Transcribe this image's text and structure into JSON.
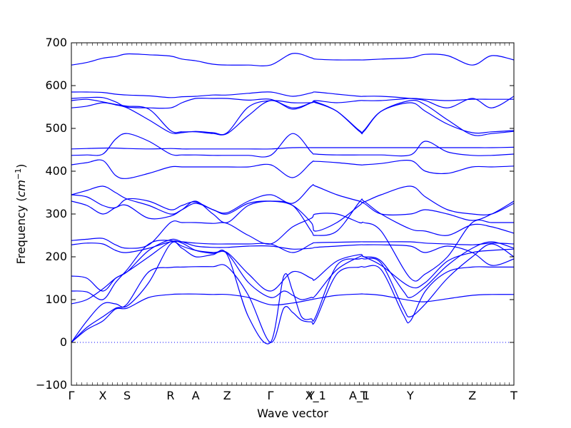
{
  "chart_data": {
    "type": "line",
    "xlabel": "Wave vector",
    "ylabel_text": "Frequency (",
    "ylabel_unit": "cm",
    "ylabel_unit_exp": "−1",
    "ylabel_close": ")",
    "ylim": [
      -100,
      700
    ],
    "yticks": [
      -100,
      0,
      100,
      200,
      300,
      400,
      500,
      600,
      700
    ],
    "xlim": [
      0,
      1
    ],
    "high_symmetry_points": [
      {
        "label": "Γ",
        "x": 0.0
      },
      {
        "label": "X",
        "x": 0.071
      },
      {
        "label": "S",
        "x": 0.126
      },
      {
        "label": "R",
        "x": 0.224
      },
      {
        "label": "A",
        "x": 0.281
      },
      {
        "label": "Z",
        "x": 0.352
      },
      {
        "label": "Γ",
        "x": 0.45
      },
      {
        "label": "Y",
        "x": 0.542
      },
      {
        "label": "X_1",
        "x": 0.552
      },
      {
        "label": "A_1",
        "x": 0.651
      },
      {
        "label": "T",
        "x": 0.661
      },
      {
        "label": "Y",
        "x": 0.766
      },
      {
        "label": "Z",
        "x": 0.906
      },
      {
        "label": "T",
        "x": 1.0
      }
    ],
    "line_color": "#0000ff",
    "zero_line": {
      "y": 0,
      "style": "dotted",
      "color": "#0000ff"
    },
    "grid": false,
    "series": [
      {
        "x": [
          0,
          0.035,
          0.071,
          0.1,
          0.126,
          0.175,
          0.224,
          0.25,
          0.281,
          0.32,
          0.352,
          0.4,
          0.45,
          0.5,
          0.542,
          0.552,
          0.6,
          0.651,
          0.661,
          0.7,
          0.766,
          0.8,
          0.85,
          0.906,
          0.95,
          1.0
        ],
        "y": [
          0,
          30,
          50,
          78,
          80,
          105,
          112,
          113,
          113,
          112,
          112,
          105,
          88,
          92,
          100,
          102,
          110,
          113,
          113,
          110,
          98,
          95,
          102,
          110,
          112,
          112
        ]
      },
      {
        "x": [
          0,
          0.035,
          0.071,
          0.1,
          0.126,
          0.175,
          0.224,
          0.25,
          0.281,
          0.32,
          0.352,
          0.4,
          0.45,
          0.48,
          0.5,
          0.52,
          0.542,
          0.552,
          0.6,
          0.651,
          0.661,
          0.7,
          0.75,
          0.766,
          0.8,
          0.85,
          0.906,
          0.95,
          1.0
        ],
        "y": [
          0,
          35,
          60,
          80,
          90,
          165,
          175,
          176,
          177,
          177,
          177,
          110,
          0,
          80,
          70,
          52,
          48,
          52,
          160,
          176,
          176,
          170,
          65,
          50,
          120,
          165,
          176,
          176,
          176
        ]
      },
      {
        "x": [
          0,
          0.035,
          0.071,
          0.1,
          0.126,
          0.175,
          0.224,
          0.25,
          0.281,
          0.32,
          0.352,
          0.4,
          0.45,
          0.48,
          0.5,
          0.52,
          0.542,
          0.552,
          0.6,
          0.651,
          0.661,
          0.7,
          0.75,
          0.766,
          0.8,
          0.85,
          0.906,
          0.95,
          1.0
        ],
        "y": [
          0,
          50,
          90,
          90,
          85,
          140,
          230,
          220,
          200,
          205,
          205,
          60,
          0,
          155,
          120,
          60,
          55,
          60,
          180,
          195,
          195,
          185,
          80,
          60,
          90,
          150,
          200,
          230,
          200
        ]
      },
      {
        "x": [
          0,
          0.035,
          0.071,
          0.1,
          0.126,
          0.175,
          0.224,
          0.25,
          0.281,
          0.32,
          0.352,
          0.4,
          0.45,
          0.48,
          0.5,
          0.52,
          0.542,
          0.552,
          0.6,
          0.651,
          0.661,
          0.7,
          0.75,
          0.766,
          0.8,
          0.85,
          0.906,
          0.95,
          1.0
        ],
        "y": [
          90,
          100,
          125,
          150,
          165,
          200,
          235,
          232,
          215,
          208,
          208,
          140,
          105,
          120,
          110,
          100,
          105,
          110,
          170,
          200,
          200,
          190,
          120,
          105,
          130,
          180,
          220,
          235,
          220
        ]
      },
      {
        "x": [
          0,
          0.035,
          0.071,
          0.1,
          0.126,
          0.175,
          0.224,
          0.25,
          0.281,
          0.32,
          0.352,
          0.4,
          0.45,
          0.5,
          0.542,
          0.552,
          0.6,
          0.651,
          0.661,
          0.7,
          0.766,
          0.8,
          0.85,
          0.906,
          0.95,
          1.0
        ],
        "y": [
          120,
          118,
          100,
          140,
          170,
          230,
          238,
          225,
          215,
          210,
          210,
          160,
          120,
          165,
          150,
          148,
          190,
          205,
          200,
          180,
          130,
          140,
          190,
          210,
          215,
          218
        ]
      },
      {
        "x": [
          0,
          0.035,
          0.071,
          0.1,
          0.126,
          0.175,
          0.224,
          0.25,
          0.281,
          0.32,
          0.352,
          0.4,
          0.45,
          0.5,
          0.542,
          0.552,
          0.6,
          0.651,
          0.661,
          0.7,
          0.766,
          0.8,
          0.85,
          0.906,
          0.95,
          1.0
        ],
        "y": [
          155,
          150,
          120,
          150,
          165,
          215,
          240,
          235,
          225,
          222,
          222,
          225,
          225,
          218,
          220,
          222,
          225,
          228,
          228,
          228,
          225,
          210,
          225,
          210,
          180,
          195
        ]
      },
      {
        "x": [
          0,
          0.035,
          0.071,
          0.1,
          0.126,
          0.175,
          0.224,
          0.25,
          0.281,
          0.32,
          0.352,
          0.4,
          0.45,
          0.5,
          0.542,
          0.552,
          0.6,
          0.651,
          0.661,
          0.7,
          0.766,
          0.8,
          0.85,
          0.906,
          0.95,
          1.0
        ],
        "y": [
          228,
          232,
          230,
          215,
          210,
          220,
          235,
          235,
          232,
          230,
          230,
          230,
          230,
          210,
          230,
          233,
          234,
          235,
          235,
          235,
          235,
          232,
          230,
          228,
          232,
          230
        ]
      },
      {
        "x": [
          0,
          0.035,
          0.071,
          0.1,
          0.126,
          0.175,
          0.224,
          0.25,
          0.281,
          0.32,
          0.352,
          0.4,
          0.45,
          0.5,
          0.542,
          0.552,
          0.6,
          0.651,
          0.661,
          0.7,
          0.766,
          0.8,
          0.85,
          0.906,
          0.95,
          1.0
        ],
        "y": [
          238,
          241,
          243,
          228,
          220,
          228,
          280,
          280,
          280,
          278,
          278,
          250,
          230,
          270,
          290,
          300,
          300,
          280,
          280,
          260,
          150,
          160,
          200,
          280,
          280,
          280
        ]
      },
      {
        "x": [
          0,
          0.035,
          0.071,
          0.1,
          0.126,
          0.175,
          0.224,
          0.25,
          0.281,
          0.32,
          0.352,
          0.4,
          0.45,
          0.5,
          0.542,
          0.552,
          0.6,
          0.651,
          0.661,
          0.7,
          0.766,
          0.8,
          0.85,
          0.906,
          0.95,
          1.0
        ],
        "y": [
          330,
          320,
          300,
          315,
          320,
          290,
          295,
          310,
          330,
          300,
          280,
          320,
          330,
          320,
          260,
          250,
          260,
          328,
          330,
          300,
          265,
          260,
          250,
          275,
          270,
          255
        ]
      },
      {
        "x": [
          0,
          0.035,
          0.071,
          0.1,
          0.126,
          0.175,
          0.224,
          0.25,
          0.281,
          0.32,
          0.352,
          0.4,
          0.45,
          0.5,
          0.542,
          0.552,
          0.6,
          0.651,
          0.661,
          0.7,
          0.766,
          0.8,
          0.85,
          0.906,
          0.95,
          1.0
        ],
        "y": [
          345,
          355,
          365,
          350,
          335,
          320,
          300,
          310,
          325,
          310,
          300,
          325,
          330,
          320,
          280,
          260,
          280,
          320,
          325,
          300,
          300,
          310,
          300,
          285,
          300,
          330
        ]
      },
      {
        "x": [
          0,
          0.035,
          0.071,
          0.1,
          0.126,
          0.175,
          0.224,
          0.25,
          0.281,
          0.32,
          0.352,
          0.4,
          0.45,
          0.5,
          0.542,
          0.552,
          0.6,
          0.651,
          0.661,
          0.7,
          0.766,
          0.8,
          0.85,
          0.906,
          0.95,
          1.0
        ],
        "y": [
          345,
          340,
          320,
          315,
          335,
          330,
          310,
          320,
          328,
          310,
          303,
          330,
          345,
          325,
          365,
          365,
          345,
          330,
          328,
          345,
          365,
          340,
          310,
          300,
          300,
          325
        ]
      },
      {
        "x": [
          0,
          0.035,
          0.071,
          0.1,
          0.126,
          0.175,
          0.224,
          0.25,
          0.281,
          0.32,
          0.352,
          0.4,
          0.45,
          0.5,
          0.542,
          0.552,
          0.6,
          0.651,
          0.661,
          0.7,
          0.766,
          0.8,
          0.85,
          0.906,
          0.95,
          1.0
        ],
        "y": [
          415,
          420,
          425,
          390,
          383,
          395,
          410,
          410,
          410,
          410,
          410,
          410,
          415,
          385,
          420,
          423,
          420,
          415,
          415,
          418,
          425,
          400,
          395,
          410,
          410,
          412
        ]
      },
      {
        "x": [
          0,
          0.035,
          0.071,
          0.1,
          0.126,
          0.175,
          0.224,
          0.25,
          0.281,
          0.32,
          0.352,
          0.4,
          0.45,
          0.5,
          0.542,
          0.552,
          0.6,
          0.651,
          0.661,
          0.7,
          0.766,
          0.8,
          0.85,
          0.906,
          0.95,
          1.0
        ],
        "y": [
          437,
          438,
          440,
          475,
          488,
          470,
          440,
          438,
          438,
          437,
          437,
          437,
          437,
          488,
          445,
          440,
          438,
          438,
          438,
          438,
          438,
          470,
          445,
          437,
          437,
          440
        ]
      },
      {
        "x": [
          0,
          0.035,
          0.071,
          0.1,
          0.126,
          0.175,
          0.224,
          0.25,
          0.281,
          0.32,
          0.352,
          0.4,
          0.45,
          0.5,
          0.542,
          0.552,
          0.6,
          0.651,
          0.661,
          0.7,
          0.766,
          0.8,
          0.85,
          0.906,
          0.95,
          1.0
        ],
        "y": [
          452,
          453,
          454,
          454,
          453,
          452,
          453,
          452,
          452,
          452,
          452,
          452,
          452,
          455,
          455,
          455,
          455,
          455,
          455,
          455,
          455,
          455,
          455,
          455,
          455,
          456
        ]
      },
      {
        "x": [
          0,
          0.035,
          0.071,
          0.1,
          0.126,
          0.175,
          0.224,
          0.25,
          0.281,
          0.32,
          0.352,
          0.4,
          0.45,
          0.5,
          0.542,
          0.552,
          0.6,
          0.651,
          0.661,
          0.7,
          0.766,
          0.8,
          0.85,
          0.906,
          0.95,
          1.0
        ],
        "y": [
          548,
          552,
          560,
          555,
          548,
          520,
          490,
          490,
          493,
          490,
          490,
          550,
          565,
          560,
          560,
          560,
          540,
          495,
          495,
          540,
          560,
          540,
          510,
          490,
          492,
          495
        ]
      },
      {
        "x": [
          0,
          0.035,
          0.071,
          0.1,
          0.126,
          0.175,
          0.224,
          0.25,
          0.281,
          0.32,
          0.352,
          0.4,
          0.45,
          0.5,
          0.542,
          0.552,
          0.6,
          0.651,
          0.661,
          0.7,
          0.766,
          0.8,
          0.85,
          0.906,
          0.95,
          1.0
        ],
        "y": [
          565,
          568,
          562,
          556,
          552,
          545,
          495,
          492,
          492,
          488,
          488,
          530,
          565,
          545,
          560,
          562,
          540,
          493,
          493,
          540,
          565,
          555,
          520,
          485,
          488,
          493
        ]
      },
      {
        "x": [
          0,
          0.035,
          0.071,
          0.1,
          0.126,
          0.175,
          0.224,
          0.25,
          0.281,
          0.32,
          0.352,
          0.4,
          0.45,
          0.5,
          0.542,
          0.552,
          0.6,
          0.651,
          0.661,
          0.7,
          0.766,
          0.8,
          0.85,
          0.906,
          0.95,
          1.0
        ],
        "y": [
          570,
          572,
          572,
          562,
          550,
          548,
          548,
          560,
          570,
          570,
          570,
          566,
          568,
          548,
          560,
          565,
          560,
          565,
          565,
          565,
          570,
          568,
          565,
          568,
          568,
          568
        ]
      },
      {
        "x": [
          0,
          0.035,
          0.071,
          0.1,
          0.126,
          0.175,
          0.224,
          0.25,
          0.281,
          0.32,
          0.352,
          0.4,
          0.45,
          0.5,
          0.542,
          0.552,
          0.6,
          0.651,
          0.661,
          0.7,
          0.766,
          0.8,
          0.85,
          0.906,
          0.95,
          1.0
        ],
        "y": [
          585,
          585,
          584,
          580,
          578,
          576,
          572,
          574,
          575,
          578,
          578,
          582,
          585,
          575,
          583,
          585,
          580,
          575,
          575,
          575,
          570,
          565,
          548,
          570,
          548,
          575
        ]
      },
      {
        "x": [
          0,
          0.035,
          0.071,
          0.1,
          0.126,
          0.175,
          0.224,
          0.25,
          0.281,
          0.32,
          0.352,
          0.4,
          0.45,
          0.5,
          0.542,
          0.552,
          0.6,
          0.651,
          0.661,
          0.7,
          0.766,
          0.8,
          0.85,
          0.906,
          0.95,
          1.0
        ],
        "y": [
          648,
          654,
          664,
          668,
          674,
          672,
          669,
          662,
          658,
          650,
          648,
          648,
          648,
          675,
          665,
          662,
          660,
          660,
          660,
          662,
          665,
          673,
          670,
          648,
          670,
          660
        ]
      }
    ]
  }
}
